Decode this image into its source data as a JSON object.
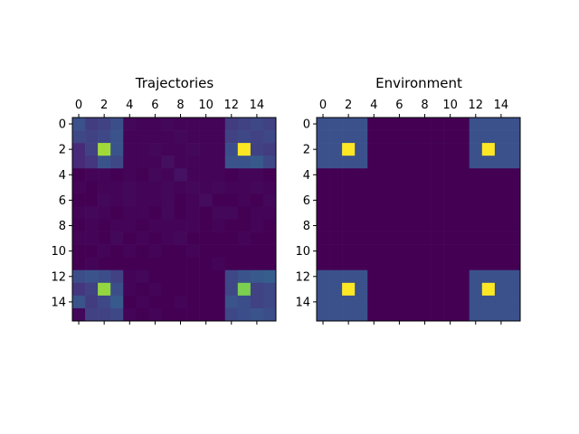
{
  "chart_data": [
    {
      "type": "heatmap",
      "title": "Trajectories",
      "xlabel": "",
      "ylabel": "",
      "rows": 16,
      "cols": 16,
      "xticks": [
        0,
        2,
        4,
        6,
        8,
        10,
        12,
        14
      ],
      "yticks": [
        0,
        2,
        4,
        6,
        8,
        10,
        12,
        14
      ],
      "xaxis_position": "top",
      "colormap": "viridis",
      "vmin": 0,
      "vmax": 1,
      "grid": false,
      "values": [
        [
          0.25,
          0.18,
          0.2,
          0.24,
          0.02,
          0.01,
          0.01,
          0.02,
          0.01,
          0.01,
          0.01,
          0.01,
          0.18,
          0.2,
          0.22,
          0.2
        ],
        [
          0.22,
          0.2,
          0.22,
          0.26,
          0.01,
          0.01,
          0.01,
          0.01,
          0.02,
          0.01,
          0.01,
          0.01,
          0.2,
          0.22,
          0.2,
          0.22
        ],
        [
          0.12,
          0.2,
          0.86,
          0.26,
          0.01,
          0.01,
          0.02,
          0.01,
          0.01,
          0.02,
          0.01,
          0.01,
          0.24,
          1.0,
          0.2,
          0.18
        ],
        [
          0.12,
          0.16,
          0.26,
          0.22,
          0.01,
          0.01,
          0.01,
          0.04,
          0.01,
          0.01,
          0.01,
          0.01,
          0.26,
          0.26,
          0.28,
          0.22
        ],
        [
          0.0,
          0.01,
          0.01,
          0.0,
          0.01,
          0.0,
          0.02,
          0.01,
          0.05,
          0.01,
          0.01,
          0.01,
          0.0,
          0.01,
          0.01,
          0.0
        ],
        [
          0.01,
          0.0,
          0.01,
          0.01,
          0.02,
          0.01,
          0.01,
          0.02,
          0.01,
          0.02,
          0.01,
          0.02,
          0.01,
          0.01,
          0.02,
          0.01
        ],
        [
          0.0,
          0.0,
          0.02,
          0.01,
          0.02,
          0.01,
          0.01,
          0.02,
          0.0,
          0.01,
          0.03,
          0.0,
          0.0,
          0.01,
          0.0,
          0.02
        ],
        [
          0.01,
          0.02,
          0.01,
          0.0,
          0.01,
          0.01,
          0.0,
          0.02,
          0.0,
          0.01,
          0.0,
          0.02,
          0.02,
          0.0,
          0.01,
          0.01
        ],
        [
          0.0,
          0.01,
          0.0,
          0.01,
          0.01,
          0.0,
          0.01,
          0.01,
          0.01,
          0.01,
          0.0,
          0.01,
          0.0,
          0.0,
          0.01,
          0.0
        ],
        [
          0.01,
          0.01,
          0.0,
          0.02,
          0.0,
          0.01,
          0.0,
          0.01,
          0.02,
          0.0,
          0.0,
          0.0,
          0.0,
          0.01,
          0.0,
          0.0
        ],
        [
          0.0,
          0.0,
          0.01,
          0.0,
          0.01,
          0.0,
          0.01,
          0.0,
          0.0,
          0.01,
          0.0,
          0.0,
          0.0,
          0.0,
          0.0,
          0.0
        ],
        [
          0.0,
          0.01,
          0.0,
          0.0,
          0.0,
          0.0,
          0.0,
          0.0,
          0.0,
          0.0,
          0.0,
          0.01,
          0.0,
          0.0,
          0.0,
          0.0
        ],
        [
          0.24,
          0.26,
          0.24,
          0.2,
          0.01,
          0.02,
          0.0,
          0.0,
          0.0,
          0.0,
          0.0,
          0.0,
          0.22,
          0.26,
          0.28,
          0.3
        ],
        [
          0.16,
          0.2,
          0.84,
          0.24,
          0.01,
          0.0,
          0.01,
          0.0,
          0.0,
          0.0,
          0.0,
          0.0,
          0.22,
          0.8,
          0.2,
          0.22
        ],
        [
          0.26,
          0.18,
          0.22,
          0.28,
          0.0,
          0.01,
          0.0,
          0.0,
          0.01,
          0.0,
          0.0,
          0.0,
          0.26,
          0.24,
          0.2,
          0.22
        ],
        [
          0.02,
          0.2,
          0.2,
          0.22,
          0.01,
          0.0,
          0.01,
          0.0,
          0.0,
          0.0,
          0.0,
          0.0,
          0.22,
          0.24,
          0.26,
          0.24
        ]
      ]
    },
    {
      "type": "heatmap",
      "title": "Environment",
      "xlabel": "",
      "ylabel": "",
      "rows": 16,
      "cols": 16,
      "xticks": [
        0,
        2,
        4,
        6,
        8,
        10,
        12,
        14
      ],
      "yticks": [
        0,
        2,
        4,
        6,
        8,
        10,
        12,
        14
      ],
      "xaxis_position": "top",
      "colormap": "viridis",
      "vmin": 0,
      "vmax": 1,
      "grid": false,
      "values": [
        [
          0.25,
          0.25,
          0.25,
          0.25,
          0,
          0,
          0,
          0,
          0,
          0,
          0,
          0,
          0.25,
          0.25,
          0.25,
          0.25
        ],
        [
          0.25,
          0.25,
          0.25,
          0.25,
          0,
          0,
          0,
          0,
          0,
          0,
          0,
          0,
          0.25,
          0.25,
          0.25,
          0.25
        ],
        [
          0.25,
          0.25,
          1.0,
          0.25,
          0,
          0,
          0,
          0,
          0,
          0,
          0,
          0,
          0.25,
          1.0,
          0.25,
          0.25
        ],
        [
          0.25,
          0.25,
          0.25,
          0.25,
          0,
          0,
          0,
          0,
          0,
          0,
          0,
          0,
          0.25,
          0.25,
          0.25,
          0.25
        ],
        [
          0,
          0,
          0,
          0,
          0,
          0,
          0,
          0,
          0,
          0,
          0,
          0,
          0,
          0,
          0,
          0
        ],
        [
          0,
          0,
          0,
          0,
          0,
          0,
          0,
          0,
          0,
          0,
          0,
          0,
          0,
          0,
          0,
          0
        ],
        [
          0,
          0,
          0,
          0,
          0,
          0,
          0,
          0,
          0,
          0,
          0,
          0,
          0,
          0,
          0,
          0
        ],
        [
          0,
          0,
          0,
          0,
          0,
          0,
          0,
          0,
          0,
          0,
          0,
          0,
          0,
          0,
          0,
          0
        ],
        [
          0,
          0,
          0,
          0,
          0,
          0,
          0,
          0,
          0,
          0,
          0,
          0,
          0,
          0,
          0,
          0
        ],
        [
          0,
          0,
          0,
          0,
          0,
          0,
          0,
          0,
          0,
          0,
          0,
          0,
          0,
          0,
          0,
          0
        ],
        [
          0,
          0,
          0,
          0,
          0,
          0,
          0,
          0,
          0,
          0,
          0,
          0,
          0,
          0,
          0,
          0
        ],
        [
          0,
          0,
          0,
          0,
          0,
          0,
          0,
          0,
          0,
          0,
          0,
          0,
          0,
          0,
          0,
          0
        ],
        [
          0.25,
          0.25,
          0.25,
          0.25,
          0,
          0,
          0,
          0,
          0,
          0,
          0,
          0,
          0.25,
          0.25,
          0.25,
          0.25
        ],
        [
          0.25,
          0.25,
          1.0,
          0.25,
          0,
          0,
          0,
          0,
          0,
          0,
          0,
          0,
          0.25,
          1.0,
          0.25,
          0.25
        ],
        [
          0.25,
          0.25,
          0.25,
          0.25,
          0,
          0,
          0,
          0,
          0,
          0,
          0,
          0,
          0.25,
          0.25,
          0.25,
          0.25
        ],
        [
          0.25,
          0.25,
          0.25,
          0.25,
          0,
          0,
          0,
          0,
          0,
          0,
          0,
          0,
          0.25,
          0.25,
          0.25,
          0.25
        ]
      ]
    }
  ]
}
